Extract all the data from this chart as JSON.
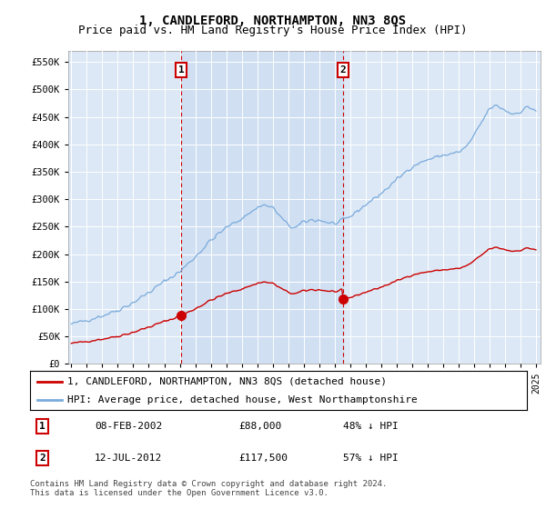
{
  "title": "1, CANDLEFORD, NORTHAMPTON, NN3 8QS",
  "subtitle": "Price paid vs. HM Land Registry's House Price Index (HPI)",
  "ylim": [
    0,
    570000
  ],
  "yticks": [
    0,
    50000,
    100000,
    150000,
    200000,
    250000,
    300000,
    350000,
    400000,
    450000,
    500000,
    550000
  ],
  "background_color": "#ffffff",
  "plot_bg_color": "#dce8f5",
  "grid_color": "#ffffff",
  "hpi_color": "#7aaadd",
  "price_color": "#cc0000",
  "sale1_x": 2002.1,
  "sale1_price": 88000,
  "sale2_x": 2012.54,
  "sale2_price": 117500,
  "shade_color": "#dce8f5",
  "legend_label_price": "1, CANDLEFORD, NORTHAMPTON, NN3 8QS (detached house)",
  "legend_label_hpi": "HPI: Average price, detached house, West Northamptonshire",
  "table_row1": [
    "1",
    "08-FEB-2002",
    "£88,000",
    "48% ↓ HPI"
  ],
  "table_row2": [
    "2",
    "12-JUL-2012",
    "£117,500",
    "57% ↓ HPI"
  ],
  "footer": "Contains HM Land Registry data © Crown copyright and database right 2024.\nThis data is licensed under the Open Government Licence v3.0.",
  "title_fontsize": 10,
  "subtitle_fontsize": 9,
  "tick_fontsize": 7,
  "legend_fontsize": 8,
  "table_fontsize": 8,
  "footer_fontsize": 6.5
}
